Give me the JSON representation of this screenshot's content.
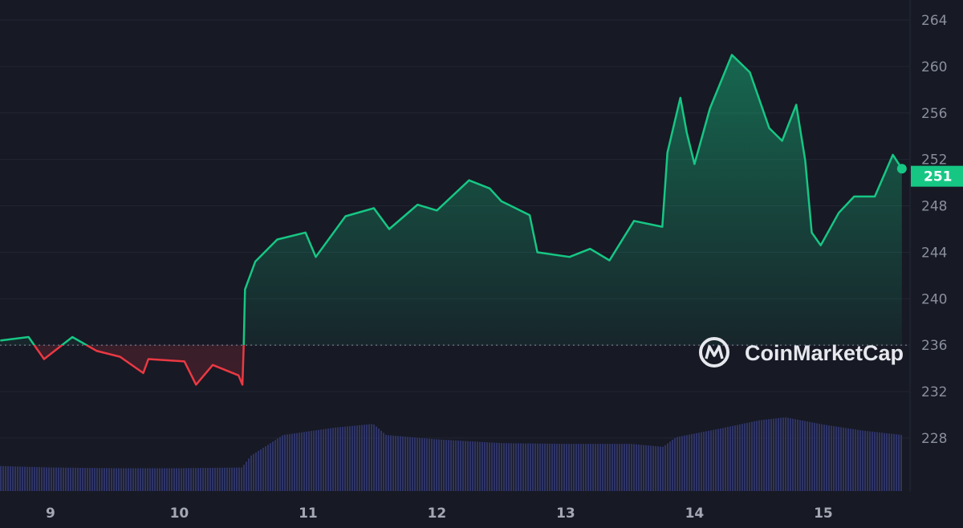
{
  "chart_data": {
    "type": "line",
    "title": "",
    "xlabel": "",
    "ylabel": "",
    "x_ticks": [
      "9",
      "10",
      "11",
      "12",
      "13",
      "14",
      "15"
    ],
    "y_ticks": [
      228,
      232,
      236,
      240,
      244,
      248,
      252,
      256,
      260,
      264
    ],
    "ylim": [
      225,
      265
    ],
    "xlim": [
      8.6,
      15.65
    ],
    "grid": true,
    "reference_price": 236,
    "current_price_label": "251",
    "colors": {
      "up": "#16c784",
      "down": "#ea3943",
      "volume": "#2e3466",
      "background": "#171924"
    },
    "series": [
      {
        "x": [
          8.61,
          8.83,
          8.95,
          9.17,
          9.36,
          9.54,
          9.72,
          9.76,
          10.04,
          10.13,
          10.26,
          10.46,
          10.49,
          10.5,
          10.51,
          10.59,
          10.76,
          10.98,
          11.06,
          11.29,
          11.51,
          11.63,
          11.85,
          12.0,
          12.25,
          12.41,
          12.5,
          12.72,
          12.78,
          13.03,
          13.19,
          13.34,
          13.53,
          13.75,
          13.79,
          13.89,
          13.94,
          14.0,
          14.12,
          14.29,
          14.43,
          14.58,
          14.68,
          14.79,
          14.86,
          14.91,
          14.98,
          15.12,
          15.24,
          15.4,
          15.54,
          15.61
        ],
        "y": [
          236.4,
          236.7,
          234.8,
          236.7,
          235.5,
          235.0,
          233.6,
          234.8,
          234.6,
          232.6,
          234.3,
          233.4,
          232.6,
          236.0,
          240.8,
          243.2,
          245.1,
          245.7,
          243.6,
          247.1,
          247.8,
          246.0,
          248.1,
          247.6,
          250.2,
          249.5,
          248.4,
          247.2,
          244.0,
          243.6,
          244.3,
          243.3,
          246.7,
          246.2,
          252.6,
          257.3,
          254.3,
          251.6,
          256.4,
          261.0,
          259.5,
          254.7,
          253.6,
          256.7,
          251.9,
          245.7,
          244.6,
          247.4,
          248.8,
          248.8,
          252.4,
          251.2
        ]
      }
    ],
    "volume": {
      "x": [
        8.6,
        9.0,
        9.5,
        10.0,
        10.48,
        10.55,
        10.8,
        11.2,
        11.5,
        11.6,
        12.0,
        12.5,
        13.0,
        13.5,
        13.75,
        13.85,
        14.2,
        14.5,
        14.7,
        15.0,
        15.3,
        15.61
      ],
      "relative": [
        34,
        32,
        31,
        31,
        32,
        48,
        76,
        86,
        91,
        76,
        70,
        65,
        64,
        64,
        60,
        73,
        85,
        96,
        100,
        90,
        82,
        76
      ]
    },
    "watermark": "CoinMarketCap"
  }
}
